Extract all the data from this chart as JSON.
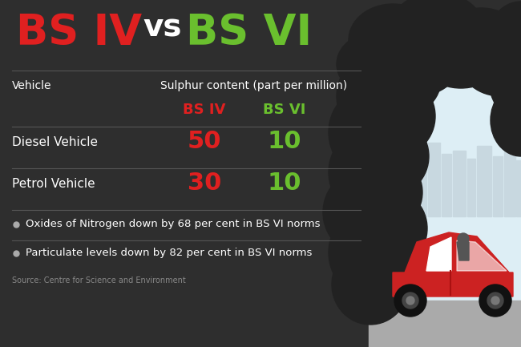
{
  "bg_color": "#2e2e2e",
  "title_bsiv": "BS IV",
  "title_vs": "vs",
  "title_bsvi": "BS VI",
  "title_bsiv_color": "#e02020",
  "title_vs_color": "#ffffff",
  "title_bsvi_color": "#6abf2e",
  "col_vehicle": "Vehicle",
  "col_sulphur": "Sulphur content (part per million)",
  "col_bsiv": "BS IV",
  "col_bsvi": "BS VI",
  "bsiv_color": "#e02020",
  "bsvi_color": "#6abf2e",
  "row1_label": "Diesel Vehicle",
  "row1_bsiv": "50",
  "row1_bsvi": "10",
  "row2_label": "Petrol Vehicle",
  "row2_bsiv": "30",
  "row2_bsvi": "10",
  "bullet1": "Oxides of Nitrogen down by 68 per cent in BS VI norms",
  "bullet2": "Particulate levels down by 82 per cent in BS VI norms",
  "source": "Source: Centre for Science and Environment",
  "text_color": "#ffffff",
  "divider_color": "#555555",
  "source_color": "#888888",
  "smoke_color": "#222222",
  "sky_color": "#ddeef5",
  "road_color": "#aaaaaa",
  "road_dark": "#999999",
  "building_color": "#c8d8e0",
  "car_red": "#cc2222",
  "car_window": "#ffffff",
  "car_dark": "#111111",
  "bullet_dot_color": "#aaaaaa"
}
